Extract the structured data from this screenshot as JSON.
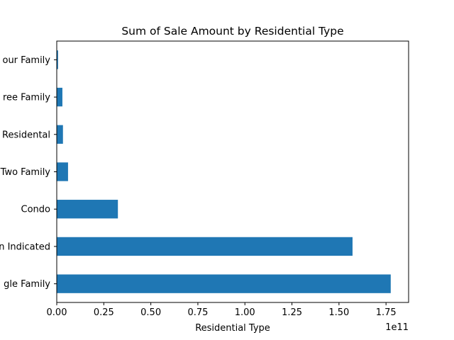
{
  "chart_data": {
    "type": "bar",
    "orientation": "horizontal",
    "title": "Sum of Sale Amount by Residential Type",
    "xlabel": "Residential Type",
    "ylabel": "",
    "x_offset_text": "1e11",
    "categories": [
      "Single Family",
      "Not Indicated",
      "Condo",
      "Two Family",
      "Residental",
      "Three Family",
      "Four Family"
    ],
    "visible_category_labels": [
      "gle Family",
      "n Indicated",
      "Condo",
      "Two Family",
      "Residental",
      "ree Family",
      "our Family"
    ],
    "values": [
      177500000000,
      157200000000,
      32500000000,
      6000000000,
      3300000000,
      3000000000,
      700000000
    ],
    "xlim": [
      0,
      187000000000
    ],
    "xticks": [
      0,
      0.25,
      0.5,
      0.75,
      1.0,
      1.25,
      1.5,
      1.75
    ],
    "xtick_labels": [
      "0.00",
      "0.25",
      "0.50",
      "0.75",
      "1.00",
      "1.25",
      "1.50",
      "1.75"
    ],
    "bar_color": "#1f77b4",
    "grid": false,
    "legend": "none"
  }
}
